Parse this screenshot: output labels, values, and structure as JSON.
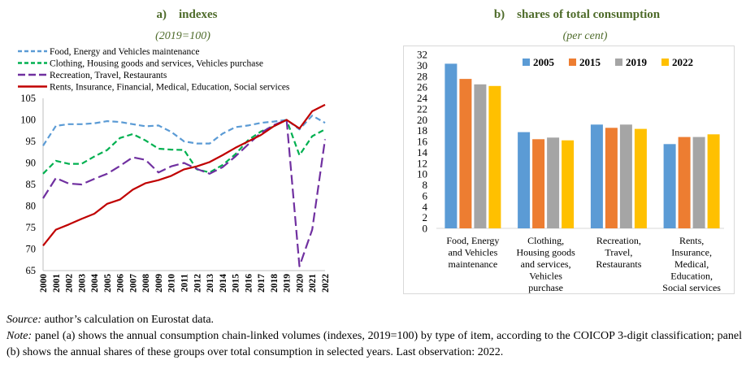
{
  "panel_a": {
    "heading": "a)    indexes",
    "subtitle": "(2019=100)"
  },
  "panel_b": {
    "heading": "b)    shares of total consumption",
    "subtitle": "(per cent)"
  },
  "chart_data": [
    {
      "type": "line",
      "title": "indexes",
      "subtitle": "(2019=100)",
      "x": [
        "2000",
        "2001",
        "2002",
        "2003",
        "2004",
        "2005",
        "2006",
        "2007",
        "2008",
        "2009",
        "2010",
        "2011",
        "2012",
        "2013",
        "2014",
        "2015",
        "2016",
        "2017",
        "2018",
        "2019",
        "2020",
        "2021",
        "2022"
      ],
      "ylim": [
        65,
        105
      ],
      "yticks": [
        65,
        70,
        75,
        80,
        85,
        90,
        95,
        100,
        105
      ],
      "grid": false,
      "legend": "top-left",
      "series": [
        {
          "name": "Food, Energy and Vehicles maintenance",
          "color": "#5b9bd5",
          "dash": "dashed",
          "values": [
            94.0,
            98.6,
            99.0,
            99.0,
            99.2,
            99.7,
            99.5,
            99.0,
            98.5,
            98.7,
            97.2,
            95.0,
            94.5,
            94.5,
            96.8,
            98.3,
            98.7,
            99.3,
            99.6,
            100.0,
            97.8,
            101.0,
            99.3
          ]
        },
        {
          "name": "Clothing, Housing goods and services, Vehicles purchase",
          "color": "#00b050",
          "dash": "dashed",
          "values": [
            87.5,
            90.5,
            89.8,
            89.8,
            91.5,
            93.0,
            95.8,
            96.7,
            95.2,
            93.3,
            93.1,
            93.0,
            88.5,
            87.8,
            89.5,
            92.0,
            95.3,
            97.3,
            98.5,
            100.0,
            91.8,
            96.2,
            97.8
          ]
        },
        {
          "name": "Recreation, Travel, Restaurants",
          "color": "#7030a0",
          "dash": "longdash",
          "values": [
            81.8,
            86.5,
            85.2,
            85.0,
            86.3,
            87.5,
            89.3,
            91.3,
            90.7,
            87.8,
            89.2,
            90.0,
            88.6,
            87.5,
            89.0,
            91.5,
            94.3,
            97.0,
            98.8,
            100.0,
            66.0,
            74.5,
            95.5
          ]
        },
        {
          "name": "Rents, Insurance, Financial, Medical, Education, Social services",
          "color": "#c00000",
          "dash": "solid",
          "values": [
            70.8,
            74.5,
            75.7,
            77.0,
            78.2,
            80.5,
            81.5,
            83.8,
            85.3,
            86.0,
            87.0,
            88.5,
            89.2,
            90.2,
            91.8,
            93.5,
            95.0,
            96.5,
            98.5,
            100.0,
            98.0,
            102.0,
            103.5
          ]
        }
      ]
    },
    {
      "type": "bar",
      "title": "shares of total consumption",
      "subtitle": "(per cent)",
      "categories": [
        [
          "Food, Energy",
          "and Vehicles",
          "maintenance"
        ],
        [
          "Clothing,",
          "Housing goods",
          "and services,",
          "Vehicles",
          "purchase"
        ],
        [
          "Recreation,",
          "Travel,",
          "Restaurants"
        ],
        [
          "Rents,",
          "Insurance,",
          "Medical,",
          "Education,",
          "Social services"
        ]
      ],
      "ylim": [
        0,
        32
      ],
      "yticks": [
        0,
        2,
        4,
        6,
        8,
        10,
        12,
        14,
        16,
        18,
        20,
        22,
        24,
        26,
        28,
        30,
        32
      ],
      "grid": false,
      "legend": "top",
      "series": [
        {
          "name": "2005",
          "color": "#5b9bd5",
          "values": [
            30.3,
            17.7,
            19.1,
            15.5
          ]
        },
        {
          "name": "2015",
          "color": "#ed7d31",
          "values": [
            27.5,
            16.4,
            18.5,
            16.8
          ]
        },
        {
          "name": "2019",
          "color": "#a5a5a5",
          "values": [
            26.5,
            16.7,
            19.1,
            16.8
          ]
        },
        {
          "name": "2022",
          "color": "#ffc000",
          "values": [
            26.2,
            16.2,
            18.3,
            17.3
          ]
        }
      ]
    }
  ],
  "notes": {
    "source_label": "Source:",
    "source_text": " author’s calculation on Eurostat data.",
    "note_label": "Note:",
    "note_text": " panel (a) shows the annual consumption chain-linked volumes (indexes, 2019=100) by type of item, according to the COICOP 3-digit classification; panel (b) shows the annual shares of these groups over total consumption in selected years. Last observation: 2022."
  }
}
